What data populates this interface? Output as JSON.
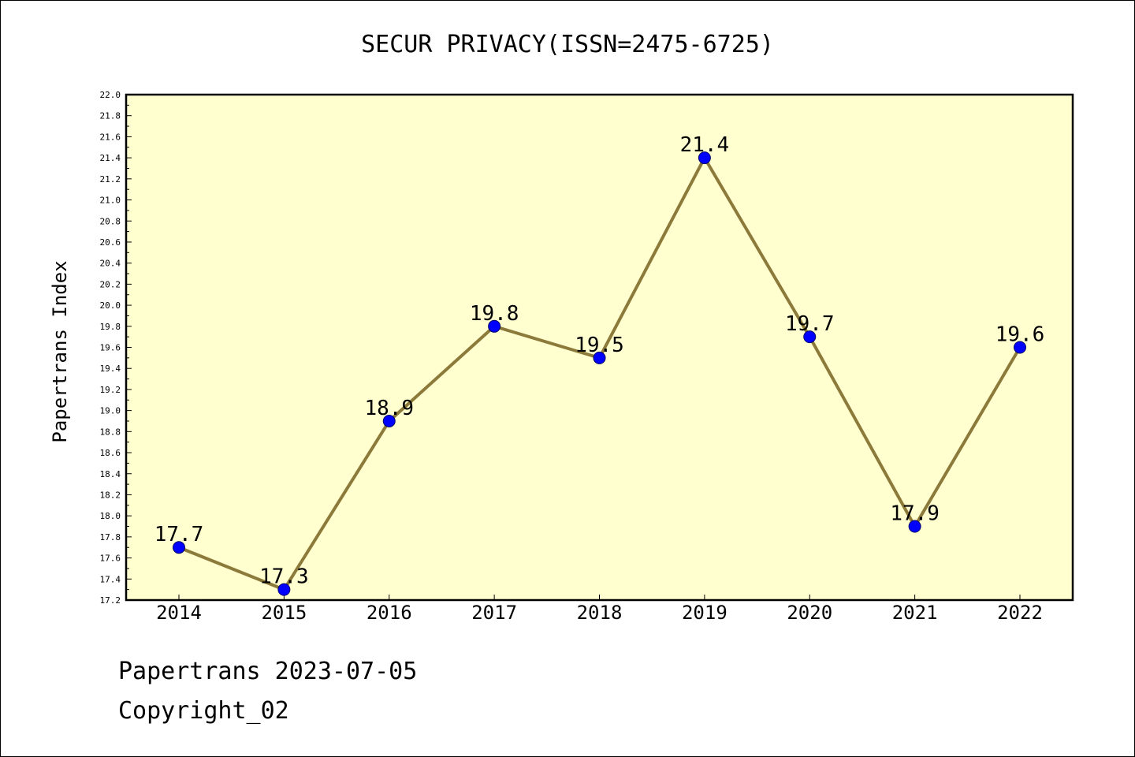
{
  "chart_data": {
    "type": "line",
    "title": "SECUR PRIVACY(ISSN=2475-6725)",
    "xlabel": "",
    "ylabel": "Papertrans Index",
    "categories": [
      "2014",
      "2015",
      "2016",
      "2017",
      "2018",
      "2019",
      "2020",
      "2021",
      "2022"
    ],
    "series": [
      {
        "values": [
          17.7,
          17.3,
          18.9,
          19.8,
          19.5,
          21.4,
          19.7,
          17.9,
          19.6
        ],
        "labels": [
          "17.7",
          "17.3",
          "18.9",
          "19.8",
          "19.5",
          "21.4",
          "19.7",
          "17.9",
          "19.6"
        ]
      }
    ],
    "ylim": [
      17.2,
      22.0
    ],
    "y_ticks": [
      "17.2",
      "17.4",
      "17.6",
      "17.8",
      "18.0",
      "18.2",
      "18.4",
      "18.6",
      "18.8",
      "19.0",
      "19.2",
      "19.4",
      "19.6",
      "19.8",
      "20.0",
      "20.2",
      "20.4",
      "20.6",
      "20.8",
      "21.0",
      "21.2",
      "21.4",
      "21.6",
      "21.8",
      "22.0"
    ],
    "grid": false,
    "legend": "none",
    "colors": {
      "plot_background": "#ffffd0",
      "line": "#8c7a3a",
      "marker": "#0000ff"
    }
  },
  "footer": {
    "line1": "Papertrans 2023-07-05",
    "line2": "Copyright_02"
  }
}
